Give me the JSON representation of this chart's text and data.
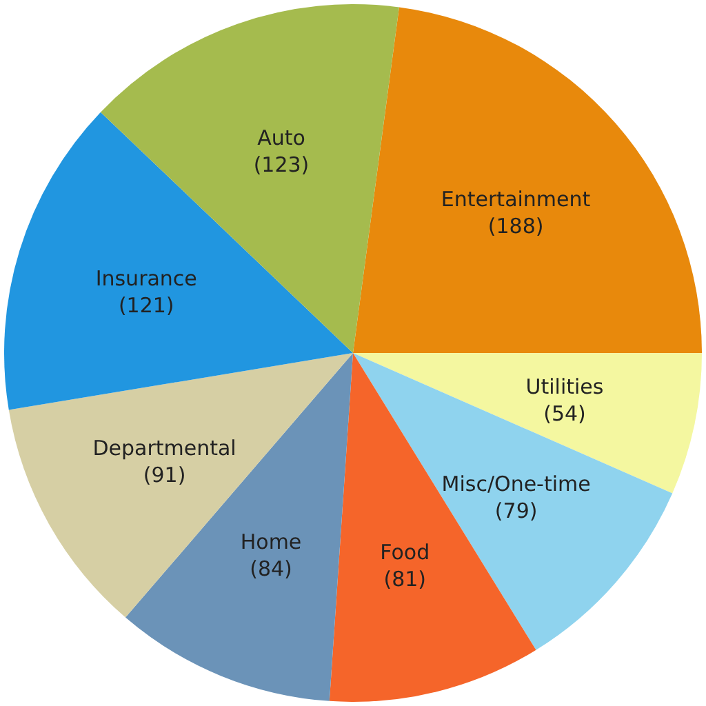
{
  "chart_data": {
    "type": "pie",
    "categories": [
      "Entertainment",
      "Utilities",
      "Misc/One-time",
      "Food",
      "Home",
      "Departmental",
      "Insurance",
      "Auto"
    ],
    "values": [
      188,
      54,
      79,
      81,
      84,
      91,
      121,
      123
    ],
    "value_labels": [
      "(188)",
      "(54)",
      "(79)",
      "(81)",
      "(84)",
      "(91)",
      "(121)",
      "(123)"
    ],
    "colors": [
      "#e8890c",
      "#f4f7a0",
      "#8fd3ee",
      "#f5652a",
      "#6b93b8",
      "#d6cfa4",
      "#2196e0",
      "#a5bb4e"
    ],
    "legend": false
  }
}
